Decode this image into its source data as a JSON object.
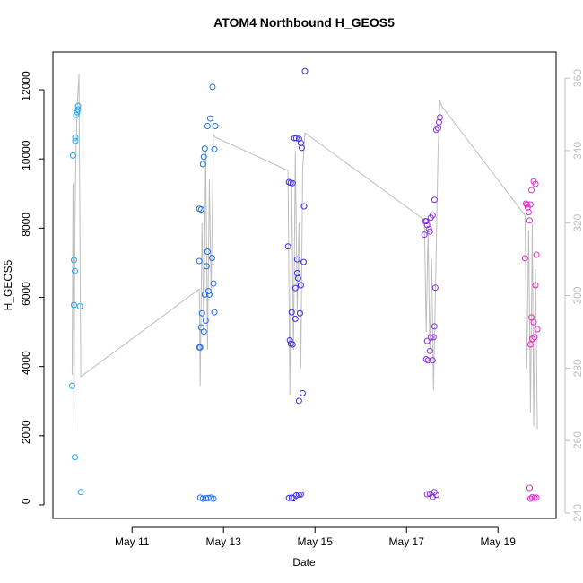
{
  "chart_data": {
    "type": "scatter",
    "title": "ATOM4 Northbound H_GEOS5",
    "x_label": "Date",
    "y_label": "H_GEOS5",
    "xlim": [
      9.27,
      20.27
    ],
    "ylim": [
      -390,
      13090
    ],
    "y2lim": [
      238.5,
      367.2
    ],
    "xticks": [
      {
        "value": 11,
        "label": "May 11"
      },
      {
        "value": 13,
        "label": "May 13"
      },
      {
        "value": 15,
        "label": "May 15"
      },
      {
        "value": 17,
        "label": "May 17"
      },
      {
        "value": 19,
        "label": "May 19"
      }
    ],
    "yticks": [
      0,
      2000,
      4000,
      6000,
      8000,
      10000,
      12000
    ],
    "y2ticks": [
      240,
      260,
      280,
      300,
      320,
      340,
      360
    ],
    "series": [
      {
        "color": "#1eaaf0",
        "x": [
          9.69,
          9.71,
          9.73,
          9.73,
          9.75,
          9.75,
          9.76,
          9.76,
          9.78,
          9.8,
          9.82,
          9.82,
          9.86,
          9.88
        ],
        "values": [
          3440,
          10100,
          7080,
          5780,
          1380,
          6760,
          10520,
          10620,
          11270,
          11350,
          11430,
          11530,
          5740,
          370
        ]
      },
      {
        "color": "#1e6ef0",
        "x": [
          12.47,
          12.49,
          12.47,
          12.47,
          12.51,
          12.51,
          12.53,
          12.55,
          12.57,
          12.59,
          12.59,
          12.61,
          12.57,
          12.63,
          12.65,
          12.67,
          12.69,
          12.71,
          12.75,
          12.76,
          12.78,
          12.8,
          12.8,
          12.82,
          12.65,
          12.49,
          12.55,
          12.61,
          12.67,
          12.73,
          12.78
        ],
        "values": [
          4550,
          4550,
          7050,
          8560,
          8540,
          5130,
          5540,
          9850,
          10060,
          10300,
          6080,
          5330,
          5010,
          6900,
          7320,
          6180,
          6080,
          11170,
          7140,
          12080,
          6400,
          10280,
          5570,
          10950,
          10950,
          210,
          180,
          190,
          200,
          210,
          180
        ]
      },
      {
        "color": "#3a2ee6",
        "x": [
          14.41,
          14.43,
          14.47,
          14.51,
          14.45,
          14.47,
          14.49,
          14.51,
          14.55,
          14.59,
          14.61,
          14.57,
          14.61,
          14.63,
          14.65,
          14.69,
          14.71,
          14.69,
          14.67,
          14.75,
          14.76,
          14.73,
          14.65,
          14.78,
          14.57,
          14.43,
          14.49,
          14.53,
          14.59,
          14.65,
          14.69
        ],
        "values": [
          7470,
          9330,
          9310,
          9300,
          4760,
          4660,
          5570,
          4640,
          10600,
          10600,
          6700,
          6270,
          7100,
          6550,
          10580,
          10460,
          10320,
          6350,
          5540,
          7020,
          8630,
          3230,
          3010,
          12540,
          5380,
          200,
          210,
          190,
          270,
          300,
          300
        ]
      },
      {
        "color": "#8a2ee6",
        "x": [
          17.39,
          17.41,
          17.43,
          17.45,
          17.49,
          17.51,
          17.53,
          17.57,
          17.61,
          17.63,
          17.45,
          17.43,
          17.47,
          17.51,
          17.53,
          17.59,
          17.61,
          17.65,
          17.69,
          17.71,
          17.73,
          17.57,
          17.45,
          17.51,
          17.57,
          17.61,
          17.65
        ],
        "values": [
          7810,
          8200,
          8200,
          8090,
          7980,
          7900,
          8300,
          8370,
          8820,
          6280,
          4740,
          4210,
          4180,
          4450,
          4840,
          4850,
          5160,
          10840,
          10890,
          11060,
          11200,
          4180,
          310,
          320,
          230,
          370,
          290
        ]
      },
      {
        "color": "#e02ec8",
        "x": [
          19.59,
          19.61,
          19.63,
          19.65,
          19.67,
          19.69,
          19.71,
          19.73,
          19.78,
          19.82,
          19.71,
          19.73,
          19.75,
          19.78,
          19.8,
          19.82,
          19.84,
          19.86,
          19.69,
          19.71,
          19.75,
          19.8,
          19.84
        ],
        "values": [
          7130,
          8710,
          8680,
          8600,
          8460,
          8220,
          8680,
          9100,
          9350,
          9280,
          4640,
          5420,
          4800,
          5280,
          4850,
          6350,
          7230,
          5080,
          490,
          180,
          220,
          200,
          210
        ]
      },
      {
        "color": "#bebebe",
        "type": "line",
        "axis": "y2",
        "x": [
          9.69,
          9.71,
          9.73,
          9.75,
          9.77,
          9.8,
          9.84,
          9.88,
          12.47,
          12.49,
          12.53,
          12.57,
          12.61,
          12.65,
          12.69,
          12.73,
          12.78,
          12.82,
          14.41,
          14.45,
          14.49,
          14.53,
          14.57,
          14.61,
          14.65,
          14.69,
          14.73,
          14.78,
          17.39,
          17.43,
          17.47,
          17.51,
          17.55,
          17.59,
          17.63,
          17.69,
          17.73,
          17.77,
          19.59,
          19.63,
          19.67,
          19.71,
          19.75,
          19.78,
          19.82,
          19.86
        ],
        "values": [
          278.1,
          330.8,
          262.7,
          317.2,
          337,
          351.8,
          361.2,
          277.6,
          301.8,
          275.1,
          320,
          290,
          340,
          285,
          332,
          300,
          344.4,
          343.7,
          334.5,
          272.6,
          330,
          285,
          340,
          295,
          320,
          280,
          335,
          344.9,
          320.9,
          290,
          318,
          285,
          310,
          273.9,
          300,
          340,
          353.8,
          352.3,
          322.1,
          280,
          318,
          267.7,
          320,
          264,
          307.3,
          263.2
        ]
      }
    ]
  }
}
